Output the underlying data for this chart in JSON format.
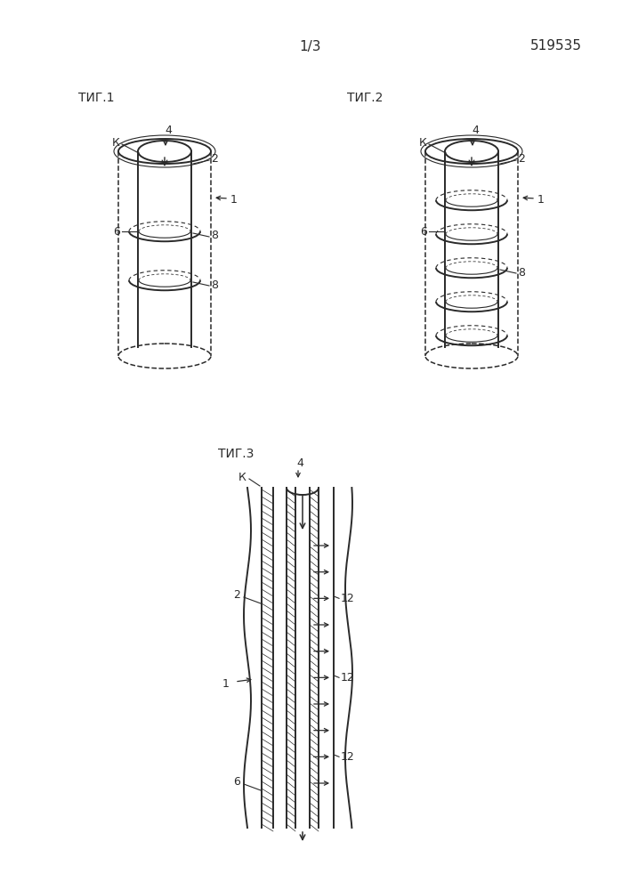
{
  "page_label": "1/3",
  "patent_number": "519535",
  "fig1_title": "ΤИГ.1",
  "fig2_title": "ΤИГ.2",
  "fig3_title": "ΤИГ.3",
  "bg_color": "#ffffff",
  "line_color": "#2a2a2a"
}
